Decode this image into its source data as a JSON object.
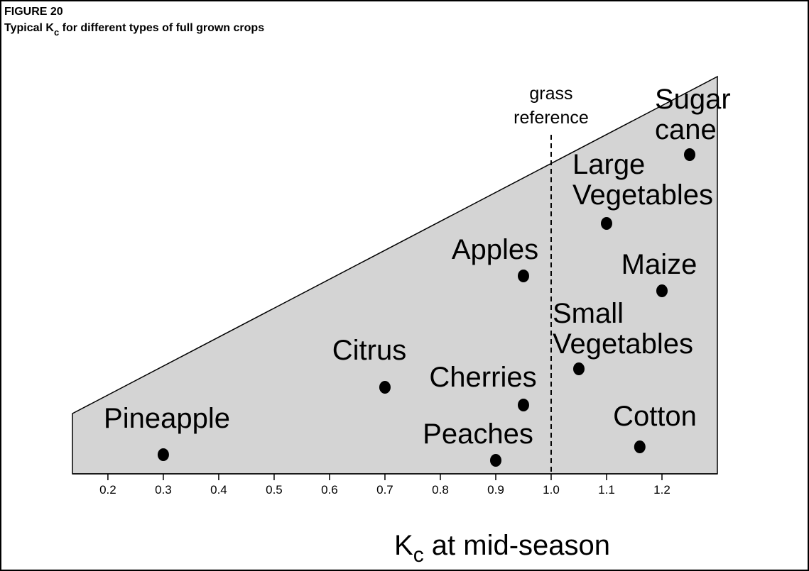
{
  "chart_data": {
    "type": "scatter",
    "title": "FIGURE 20",
    "subtitle": [
      "Typical K",
      "c",
      " for different types of full grown crops"
    ],
    "xlabel": [
      "K",
      "c",
      " at  mid-season"
    ],
    "annotation": {
      "text": [
        "grass",
        "reference"
      ],
      "x": 1.0
    },
    "points": [
      {
        "label": [
          "Pineapple"
        ],
        "x": 0.3
      },
      {
        "label": [
          "Citrus"
        ],
        "x": 0.7
      },
      {
        "label": [
          "Peaches"
        ],
        "x": 0.9
      },
      {
        "label": [
          "Cherries"
        ],
        "x": 0.95
      },
      {
        "label": [
          "Apples"
        ],
        "x": 0.95
      },
      {
        "label": [
          "Small",
          "Vegetables"
        ],
        "x": 1.05
      },
      {
        "label": [
          "Large",
          "Vegetables"
        ],
        "x": 1.1
      },
      {
        "label": [
          "Maize"
        ],
        "x": 1.2
      },
      {
        "label": [
          "Cotton"
        ],
        "x": 1.16
      },
      {
        "label": [
          "Sugar",
          "cane"
        ],
        "x": 1.25
      }
    ],
    "color": "#000000",
    "fill": "#d4d4d4",
    "xlim": [
      0.136,
      1.3
    ],
    "xticks": [
      0.2,
      0.3,
      0.4,
      0.5,
      0.6,
      0.7,
      0.8,
      0.9,
      {
        "value": 1.0,
        "label": "1.0"
      },
      1.1,
      1.2
    ]
  }
}
